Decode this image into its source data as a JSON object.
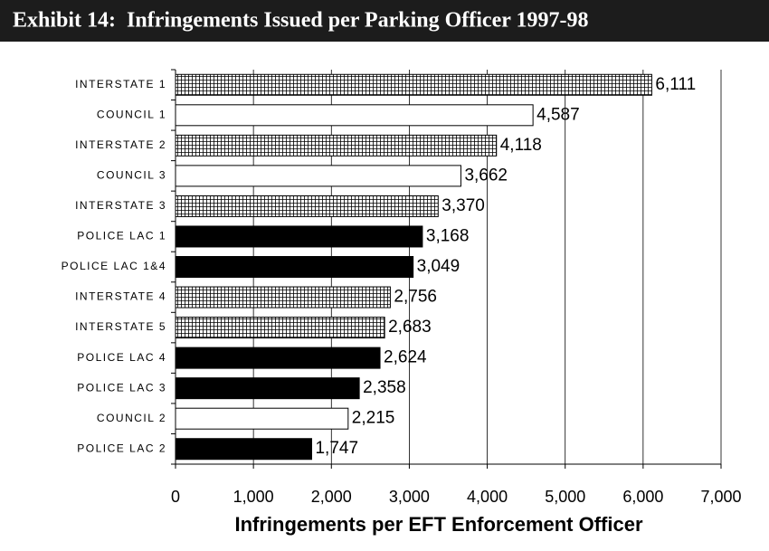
{
  "chart_data": {
    "type": "bar",
    "orientation": "horizontal",
    "title": "Exhibit 14:  Infringements Issued per Parking Officer 1997-98",
    "x_label": "Infringements per EFT Enforcement Officer",
    "categories": [
      "INTERSTATE 1",
      "COUNCIL 1",
      "INTERSTATE 2",
      "COUNCIL 3",
      "INTERSTATE 3",
      "POLICE LAC 1",
      "POLICE LAC 1&4",
      "INTERSTATE 4",
      "INTERSTATE 5",
      "POLICE LAC 4",
      "POLICE LAC 3",
      "COUNCIL 2",
      "POLICE LAC 2"
    ],
    "values": [
      6111,
      4587,
      4118,
      3662,
      3370,
      3168,
      3049,
      2756,
      2683,
      2624,
      2358,
      2215,
      1747
    ],
    "value_labels": [
      "6,111",
      "4,587",
      "4,118",
      "3,662",
      "3,370",
      "3,168",
      "3,049",
      "2,756",
      "2,683",
      "2,624",
      "2,358",
      "2,215",
      "1,747"
    ],
    "fills": [
      "crosshatch",
      "#ffffff",
      "crosshatch",
      "#ffffff",
      "crosshatch",
      "#000000",
      "#000000",
      "crosshatch",
      "crosshatch",
      "#000000",
      "#000000",
      "#ffffff",
      "#000000"
    ],
    "xlim": [
      0,
      7000
    ],
    "xticks": [
      0,
      {
        "value": 1000,
        "label": "1,000"
      },
      {
        "value": 2000,
        "label": "2,000"
      },
      {
        "value": 3000,
        "label": "3,000"
      },
      {
        "value": 4000,
        "label": "4,000"
      },
      {
        "value": 5000,
        "label": "5,000"
      },
      {
        "value": 6000,
        "label": "6,000"
      },
      {
        "value": 7000,
        "label": "7,000"
      }
    ],
    "grid": true
  }
}
